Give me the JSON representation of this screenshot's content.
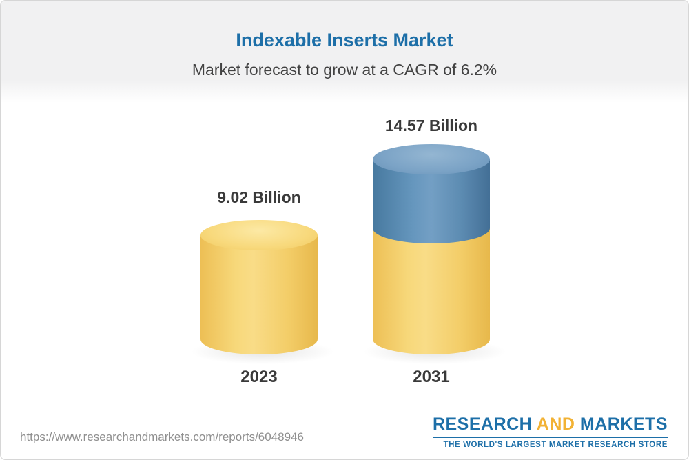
{
  "header": {
    "title": "Indexable Inserts Market",
    "subtitle": "Market forecast to grow at a CAGR of 6.2%"
  },
  "chart_data": {
    "type": "bar",
    "chart_style": "3d-cylinder",
    "categories": [
      "2023",
      "2031"
    ],
    "values": [
      9.02,
      14.57
    ],
    "value_labels": [
      "9.02 Billion",
      "14.57 Billion"
    ],
    "unit": "Billion",
    "cagr": "6.2%",
    "title": "Indexable Inserts Market",
    "subtitle": "Market forecast to grow at a CAGR of 6.2%",
    "xlabel": "",
    "ylabel": "",
    "grid": false,
    "legend_position": "none",
    "colors": {
      "base_segment": "#F5CE66",
      "growth_segment": "#5E8FB9"
    }
  },
  "footer": {
    "url": "https://www.researchandmarkets.com/reports/6048946",
    "logo": {
      "research": "RESEARCH",
      "and": "AND",
      "markets": "MARKETS",
      "tagline": "THE WORLD'S LARGEST MARKET RESEARCH STORE"
    }
  }
}
